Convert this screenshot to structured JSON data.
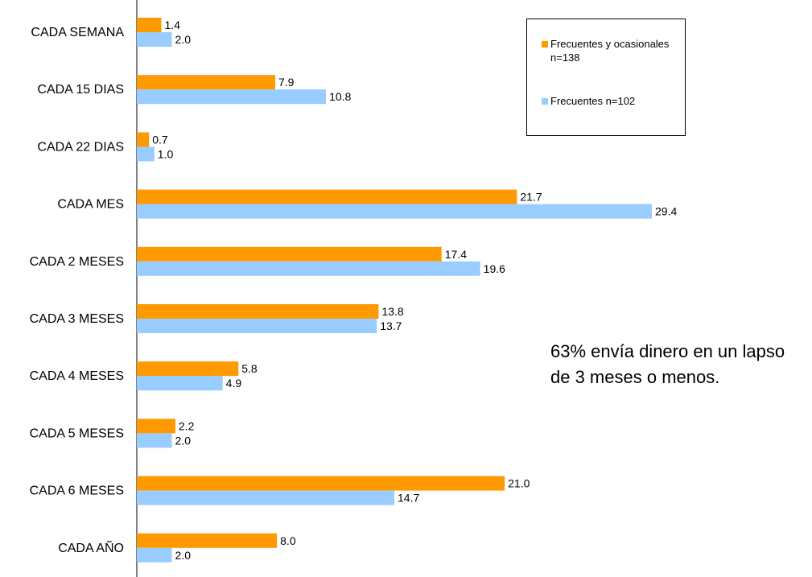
{
  "chart_data": {
    "type": "bar",
    "orientation": "horizontal",
    "categories": [
      "CADA SEMANA",
      "CADA 15 DIAS",
      "CADA 22 DIAS",
      "CADA MES",
      "CADA 2 MESES",
      "CADA 3 MESES",
      "CADA 4 MESES",
      "CADA 5 MESES",
      "CADA 6 MESES",
      "CADA AÑO"
    ],
    "series": [
      {
        "name": "Frecuentes y ocasionales n=138",
        "color": "#FF9900",
        "values": [
          1.4,
          7.9,
          0.7,
          21.7,
          17.4,
          13.8,
          5.8,
          2.2,
          21.0,
          8.0
        ],
        "labels": [
          "1.4",
          "7.9",
          "0.7",
          "21.7",
          "17.4",
          "13.8",
          "5.8",
          "2.2",
          "21.0",
          "8.0"
        ]
      },
      {
        "name": "Frecuentes n=102",
        "color": "#99CCFF",
        "values": [
          2.0,
          10.8,
          1.0,
          29.4,
          19.6,
          13.7,
          4.9,
          2.0,
          14.7,
          2.0
        ],
        "labels": [
          "2.0",
          "10.8",
          "1.0",
          "29.4",
          "19.6",
          "13.7",
          "4.9",
          "2.0",
          "14.7",
          "2.0"
        ]
      }
    ],
    "xlim": [
      0,
      29.4
    ],
    "grid": false,
    "legend_position": "top-right",
    "annotation": "63% envía dinero en un lapso de 3 meses o menos."
  },
  "legend": {
    "items": [
      {
        "label": "Frecuentes y ocasionales n=138",
        "color": "#FF9900"
      },
      {
        "label": "Frecuentes n=102",
        "color": "#99CCFF"
      }
    ]
  }
}
